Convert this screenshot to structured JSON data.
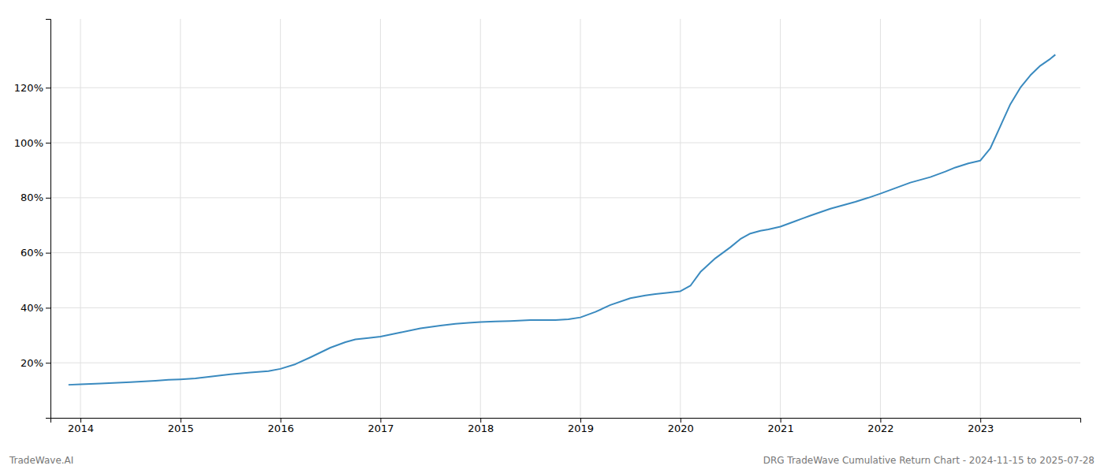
{
  "chart_data": {
    "type": "line",
    "x": [
      2013.88,
      2014.0,
      2014.2,
      2014.5,
      2014.75,
      2014.88,
      2015.0,
      2015.15,
      2015.3,
      2015.5,
      2015.7,
      2015.88,
      2016.0,
      2016.15,
      2016.3,
      2016.5,
      2016.65,
      2016.75,
      2016.88,
      2017.0,
      2017.2,
      2017.4,
      2017.6,
      2017.75,
      2017.88,
      2018.0,
      2018.15,
      2018.3,
      2018.5,
      2018.65,
      2018.75,
      2018.88,
      2019.0,
      2019.15,
      2019.3,
      2019.5,
      2019.65,
      2019.75,
      2019.88,
      2020.0,
      2020.1,
      2020.2,
      2020.35,
      2020.5,
      2020.6,
      2020.7,
      2020.8,
      2020.88,
      2021.0,
      2021.15,
      2021.3,
      2021.5,
      2021.65,
      2021.75,
      2021.88,
      2022.0,
      2022.15,
      2022.3,
      2022.5,
      2022.65,
      2022.75,
      2022.88,
      2023.0,
      2023.1,
      2023.2,
      2023.3,
      2023.4,
      2023.5,
      2023.6,
      2023.7,
      2023.75
    ],
    "values": [
      12,
      12.2,
      12.5,
      13.0,
      13.5,
      13.8,
      14.0,
      14.3,
      15.0,
      15.8,
      16.5,
      17.0,
      17.8,
      19.5,
      22.0,
      25.5,
      27.5,
      28.5,
      29.0,
      29.5,
      31.0,
      32.5,
      33.5,
      34.2,
      34.5,
      34.8,
      35.0,
      35.2,
      35.5,
      35.5,
      35.5,
      35.8,
      36.5,
      38.5,
      41.0,
      43.5,
      44.5,
      45.0,
      45.5,
      46.0,
      48.0,
      53.0,
      58.0,
      62.0,
      65.0,
      67.0,
      68.0,
      68.5,
      69.5,
      71.5,
      73.5,
      76.0,
      77.5,
      78.5,
      80.0,
      81.5,
      83.5,
      85.5,
      87.5,
      89.5,
      91.0,
      92.5,
      93.5,
      98.0,
      106.0,
      114.0,
      120.0,
      124.5,
      128.0,
      130.5,
      132.0
    ],
    "color": "#3a8abf",
    "xlim": [
      2013.7,
      2024.0
    ],
    "xticks": [
      2014,
      2015,
      2016,
      2017,
      2018,
      2019,
      2020,
      2021,
      2022,
      2023
    ],
    "ylim": [
      0,
      145
    ],
    "yticks": [
      {
        "value": 20,
        "label": "20%"
      },
      {
        "value": 40,
        "label": "40%"
      },
      {
        "value": 60,
        "label": "60%"
      },
      {
        "value": 80,
        "label": "80%"
      },
      {
        "value": 100,
        "label": "100%"
      },
      {
        "value": 120,
        "label": "120%"
      }
    ],
    "grid": true,
    "annotations": [
      "TradeWave.AI",
      "DRG TradeWave Cumulative Return Chart - 2024-11-15 to 2025-07-28"
    ]
  }
}
